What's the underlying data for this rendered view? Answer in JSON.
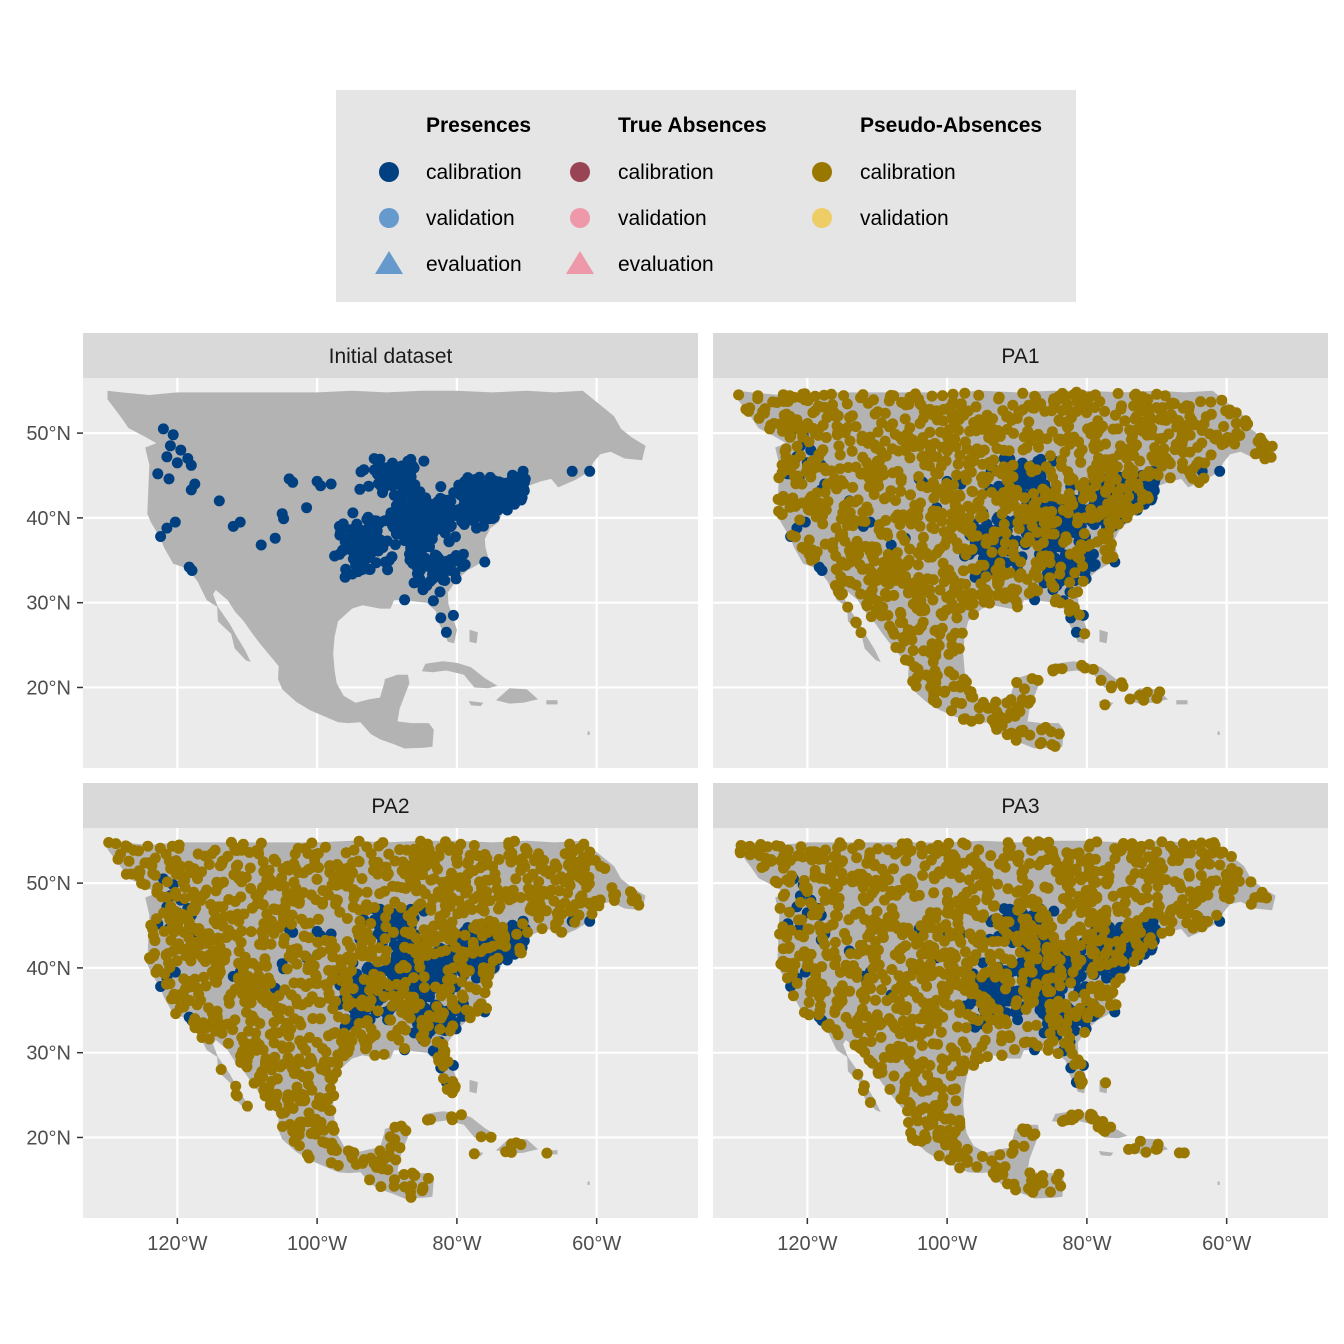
{
  "colors": {
    "presence_calibration": "#004080",
    "presence_validation": "#6699CC",
    "presence_evaluation": "#6699CC",
    "absence_calibration": "#994455",
    "absence_validation": "#EE99AA",
    "absence_evaluation": "#EE99AA",
    "pseudo_calibration": "#997700",
    "pseudo_validation": "#EECC66",
    "land": "#B3B3B3",
    "panel_bg": "#EBEBEB",
    "strip_bg": "#D9D9D9",
    "legend_bg": "#E5E5E5"
  },
  "legend": {
    "groups": [
      {
        "title": "Presences",
        "items": [
          {
            "label": "calibration",
            "shape": "circle",
            "color_key": "presence_calibration"
          },
          {
            "label": "validation",
            "shape": "circle",
            "color_key": "presence_validation"
          },
          {
            "label": "evaluation",
            "shape": "triangle",
            "color_key": "presence_evaluation"
          }
        ]
      },
      {
        "title": "True Absences",
        "items": [
          {
            "label": "calibration",
            "shape": "circle",
            "color_key": "absence_calibration"
          },
          {
            "label": "validation",
            "shape": "circle",
            "color_key": "absence_validation"
          },
          {
            "label": "evaluation",
            "shape": "triangle",
            "color_key": "absence_evaluation"
          }
        ]
      },
      {
        "title": "Pseudo-Absences",
        "items": [
          {
            "label": "calibration",
            "shape": "circle",
            "color_key": "pseudo_calibration"
          },
          {
            "label": "validation",
            "shape": "circle",
            "color_key": "pseudo_validation"
          }
        ]
      }
    ]
  },
  "chart_data": {
    "type": "scatter",
    "subtype": "faceted map",
    "facets": [
      "Initial dataset",
      "PA1",
      "PA2",
      "PA3"
    ],
    "x_axis": {
      "label": "",
      "ticks": [
        -120,
        -100,
        -80,
        -60
      ],
      "tick_labels": [
        "120°W",
        "100°W",
        "80°W",
        "60°W"
      ],
      "range": [
        -133.5,
        -45.5
      ]
    },
    "y_axis": {
      "label": "",
      "ticks": [
        20,
        30,
        40,
        50
      ],
      "tick_labels": [
        "20°N",
        "30°N",
        "40°N",
        "50°N"
      ],
      "range": [
        10.5,
        56.5
      ]
    },
    "series": [
      {
        "name": "Presences calibration",
        "color_key": "presence_calibration",
        "facets": [
          "Initial dataset",
          "PA1",
          "PA2",
          "PA3"
        ]
      },
      {
        "name": "Pseudo-Absences calibration",
        "color_key": "pseudo_calibration",
        "facets": [
          "PA1",
          "PA2",
          "PA3"
        ]
      }
    ]
  }
}
